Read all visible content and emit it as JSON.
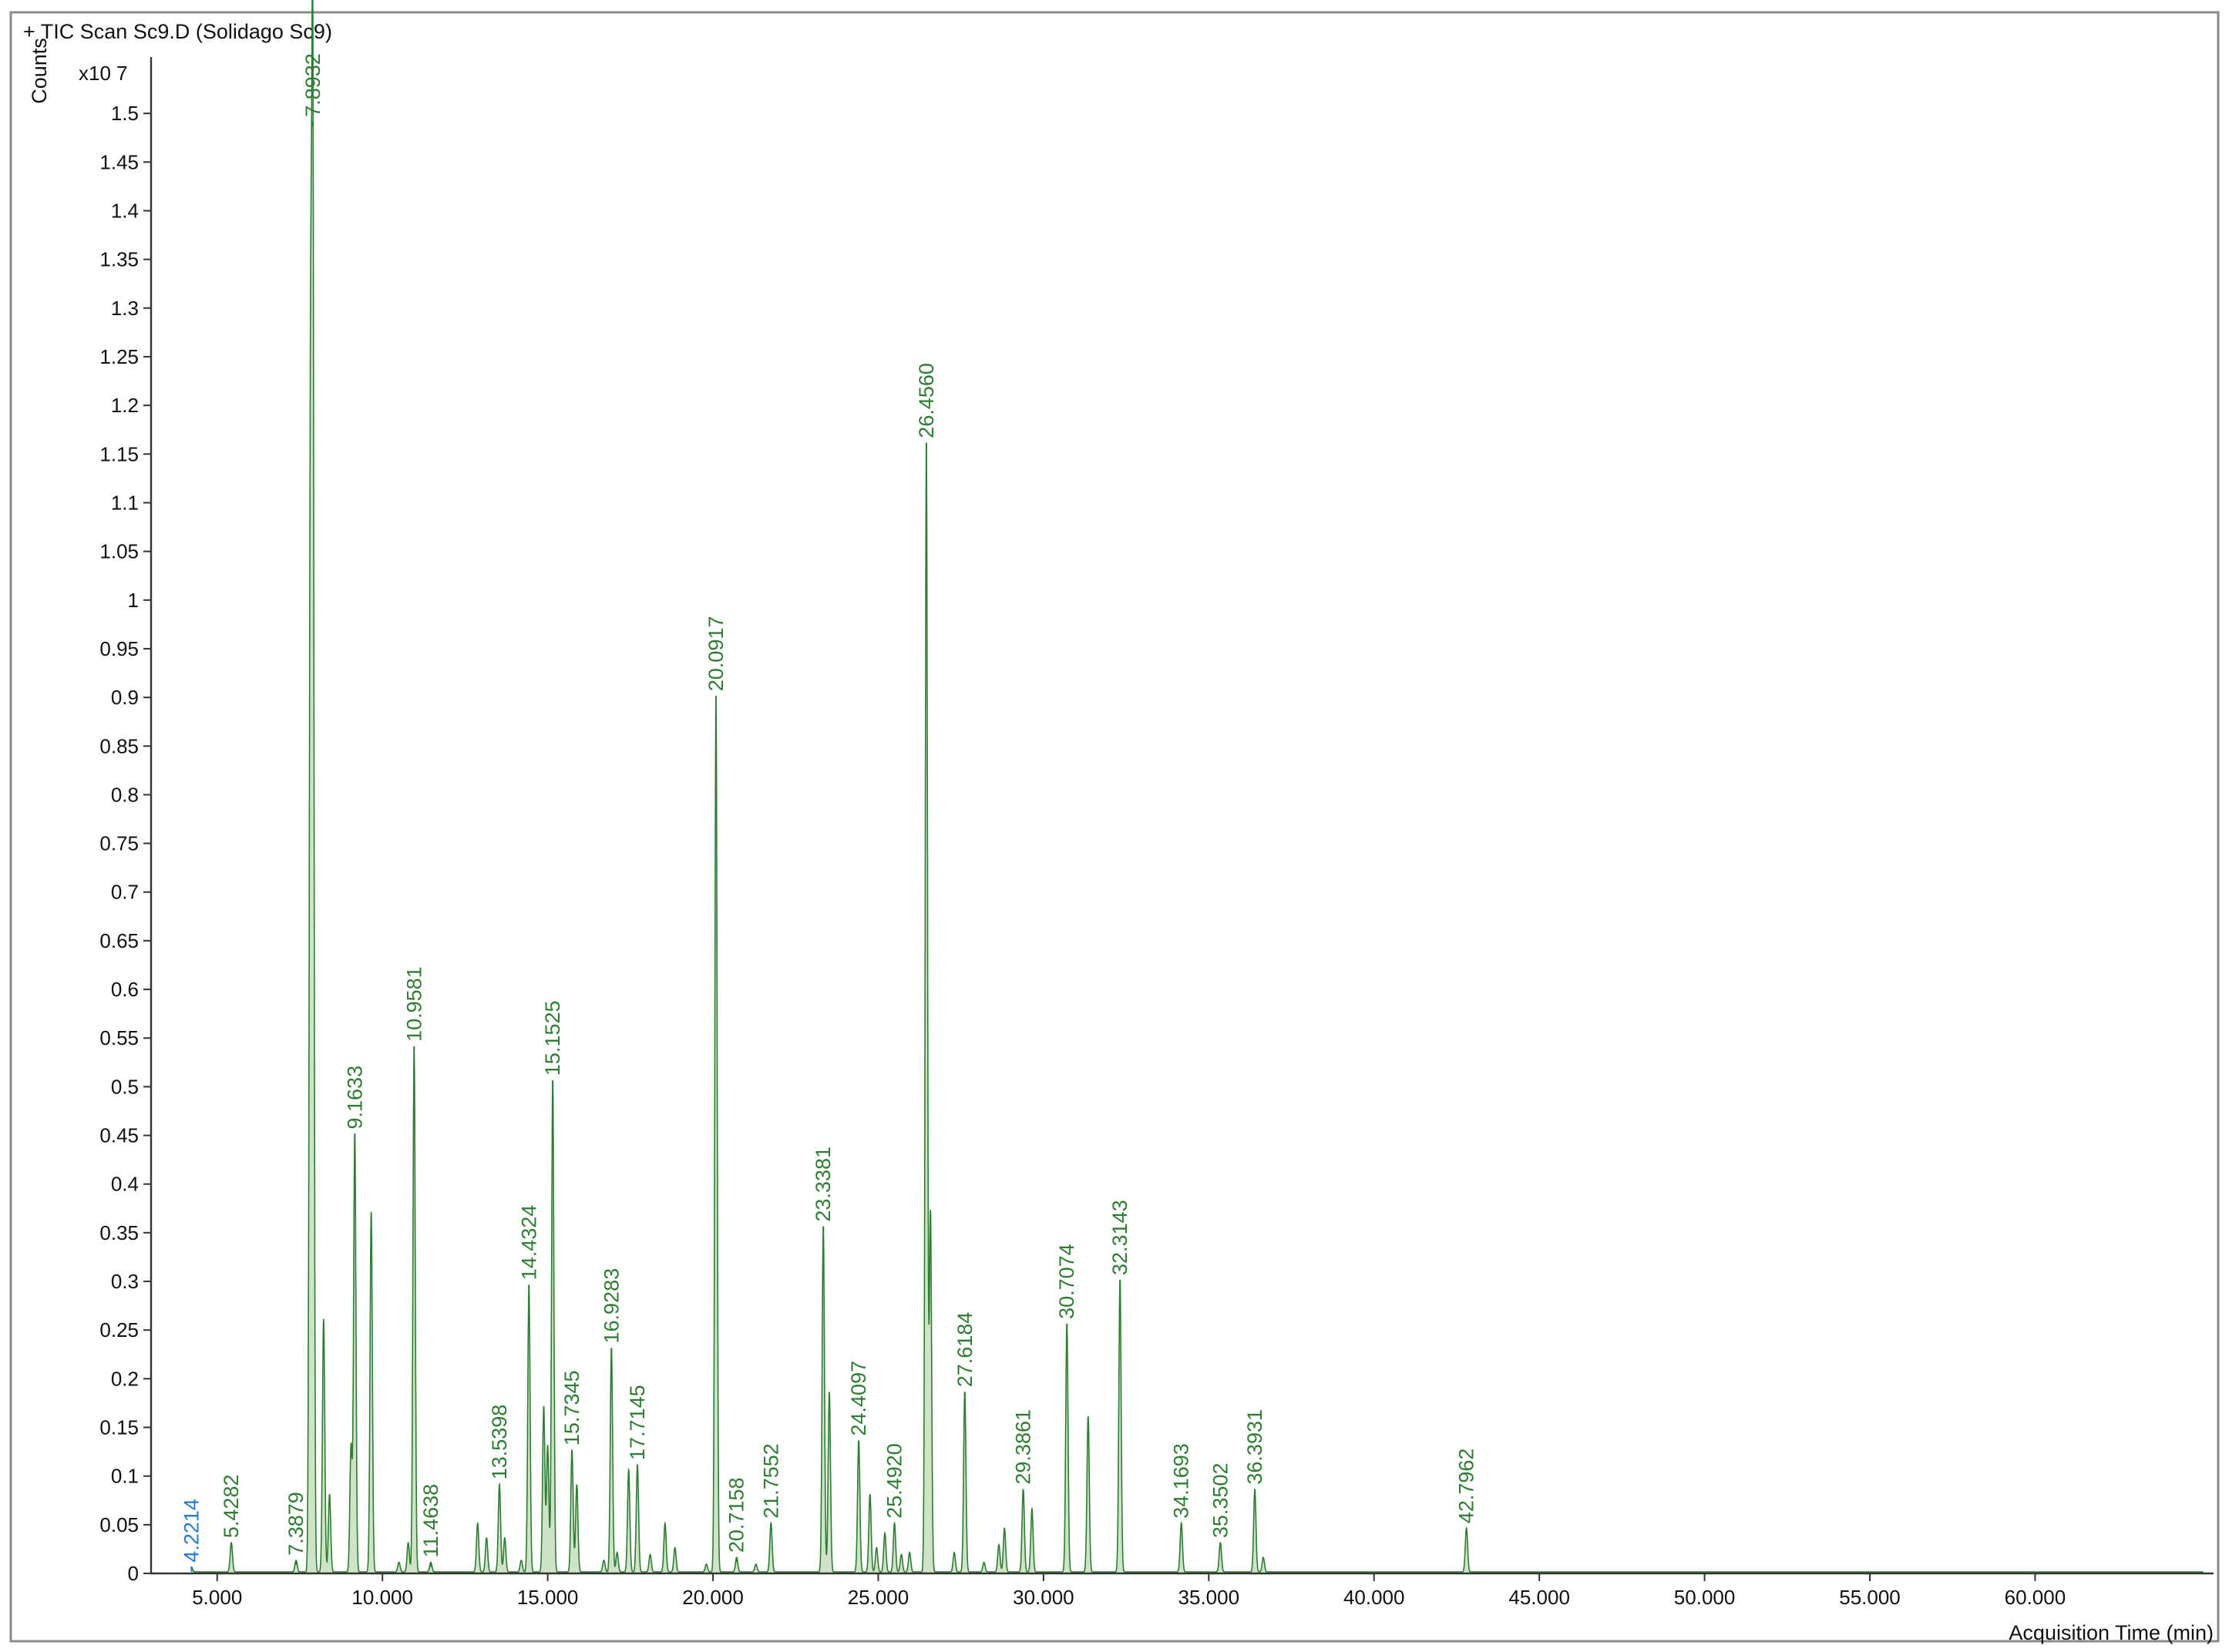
{
  "colors": {
    "trace": "#2e7d32",
    "trace_fill": "#cfe3c9",
    "highlight": "#1f7bd6",
    "axis": "#333333"
  },
  "chart_data": {
    "type": "line",
    "title": "+ TIC Scan Sc9.D (Solidago Sc9)",
    "ylabel": "Counts",
    "y_multiplier": "x10 7",
    "xlabel": "Acquisition Time (min)",
    "xlim": [
      3.0,
      65.4
    ],
    "ylim": [
      0,
      1.55
    ],
    "x_ticks": [
      5,
      10,
      15,
      20,
      25,
      30,
      35,
      40,
      45,
      50,
      55,
      60
    ],
    "x_tick_labels": [
      "5.000",
      "10.000",
      "15.000",
      "20.000",
      "25.000",
      "30.000",
      "35.000",
      "40.000",
      "45.000",
      "50.000",
      "55.000",
      "60.000"
    ],
    "y_ticks": [
      0,
      0.05,
      0.1,
      0.15,
      0.2,
      0.25,
      0.3,
      0.35,
      0.4,
      0.45,
      0.5,
      0.55,
      0.6,
      0.65,
      0.7,
      0.75,
      0.8,
      0.85,
      0.9,
      0.95,
      1,
      1.05,
      1.1,
      1.15,
      1.2,
      1.25,
      1.3,
      1.35,
      1.4,
      1.45,
      1.5
    ],
    "y_tick_labels": [
      "0",
      "0.05",
      "0.1",
      "0.15",
      "0.2",
      "0.25",
      "0.3",
      "0.35",
      "0.4",
      "0.45",
      "0.5",
      "0.55",
      "0.6",
      "0.65",
      "0.7",
      "0.75",
      "0.8",
      "0.85",
      "0.9",
      "0.95",
      "1",
      "1.05",
      "1.1",
      "1.15",
      "1.2",
      "1.25",
      "1.3",
      "1.35",
      "1.4",
      "1.45",
      "1.5"
    ],
    "labeled_peaks": [
      {
        "x": 4.2214,
        "y": 0.005,
        "label": "4.2214",
        "highlight": true
      },
      {
        "x": 5.4282,
        "y": 0.03,
        "label": "5.4282"
      },
      {
        "x": 7.3879,
        "y": 0.012,
        "label": "7.3879"
      },
      {
        "x": 7.8932,
        "y": 1.49,
        "label": "7.8932"
      },
      {
        "x": 9.1633,
        "y": 0.45,
        "label": "9.1633"
      },
      {
        "x": 10.9581,
        "y": 0.54,
        "label": "10.9581"
      },
      {
        "x": 11.4638,
        "y": 0.01,
        "label": "11.4638"
      },
      {
        "x": 13.5398,
        "y": 0.09,
        "label": "13.5398"
      },
      {
        "x": 14.4324,
        "y": 0.295,
        "label": "14.4324"
      },
      {
        "x": 15.1525,
        "y": 0.505,
        "label": "15.1525"
      },
      {
        "x": 15.7345,
        "y": 0.125,
        "label": "15.7345"
      },
      {
        "x": 16.9283,
        "y": 0.23,
        "label": "16.9283"
      },
      {
        "x": 17.7145,
        "y": 0.11,
        "label": "17.7145"
      },
      {
        "x": 20.0917,
        "y": 0.9,
        "label": "20.0917"
      },
      {
        "x": 20.7158,
        "y": 0.015,
        "label": "20.7158"
      },
      {
        "x": 21.7552,
        "y": 0.05,
        "label": "21.7552"
      },
      {
        "x": 23.3381,
        "y": 0.355,
        "label": "23.3381"
      },
      {
        "x": 24.4097,
        "y": 0.135,
        "label": "24.4097"
      },
      {
        "x": 25.492,
        "y": 0.05,
        "label": "25.4920"
      },
      {
        "x": 26.456,
        "y": 1.16,
        "label": "26.4560"
      },
      {
        "x": 27.6184,
        "y": 0.185,
        "label": "27.6184"
      },
      {
        "x": 29.3861,
        "y": 0.085,
        "label": "29.3861"
      },
      {
        "x": 30.7074,
        "y": 0.255,
        "label": "30.7074"
      },
      {
        "x": 32.3143,
        "y": 0.3,
        "label": "32.3143"
      },
      {
        "x": 34.1693,
        "y": 0.05,
        "label": "34.1693"
      },
      {
        "x": 35.3502,
        "y": 0.03,
        "label": "35.3502"
      },
      {
        "x": 36.3931,
        "y": 0.085,
        "label": "36.3931"
      },
      {
        "x": 42.7962,
        "y": 0.045,
        "label": "42.7962"
      }
    ],
    "unlabeled_peaks": [
      {
        "x": 7.82,
        "y": 1.1
      },
      {
        "x": 8.22,
        "y": 0.26
      },
      {
        "x": 8.4,
        "y": 0.08
      },
      {
        "x": 9.05,
        "y": 0.13
      },
      {
        "x": 9.66,
        "y": 0.37
      },
      {
        "x": 10.5,
        "y": 0.01
      },
      {
        "x": 10.78,
        "y": 0.03
      },
      {
        "x": 12.88,
        "y": 0.05
      },
      {
        "x": 13.15,
        "y": 0.035
      },
      {
        "x": 13.7,
        "y": 0.035
      },
      {
        "x": 14.2,
        "y": 0.012
      },
      {
        "x": 14.88,
        "y": 0.17
      },
      {
        "x": 15.0,
        "y": 0.13
      },
      {
        "x": 15.88,
        "y": 0.09
      },
      {
        "x": 16.7,
        "y": 0.012
      },
      {
        "x": 17.1,
        "y": 0.02
      },
      {
        "x": 17.45,
        "y": 0.105
      },
      {
        "x": 18.1,
        "y": 0.018
      },
      {
        "x": 18.55,
        "y": 0.05
      },
      {
        "x": 18.85,
        "y": 0.025
      },
      {
        "x": 19.8,
        "y": 0.008
      },
      {
        "x": 21.3,
        "y": 0.008
      },
      {
        "x": 23.52,
        "y": 0.185
      },
      {
        "x": 24.75,
        "y": 0.08
      },
      {
        "x": 24.95,
        "y": 0.025
      },
      {
        "x": 25.2,
        "y": 0.04
      },
      {
        "x": 25.7,
        "y": 0.018
      },
      {
        "x": 25.95,
        "y": 0.02
      },
      {
        "x": 26.58,
        "y": 0.37
      },
      {
        "x": 27.3,
        "y": 0.02
      },
      {
        "x": 28.2,
        "y": 0.01
      },
      {
        "x": 28.65,
        "y": 0.028
      },
      {
        "x": 28.82,
        "y": 0.045
      },
      {
        "x": 29.65,
        "y": 0.065
      },
      {
        "x": 31.35,
        "y": 0.16
      },
      {
        "x": 36.65,
        "y": 0.015
      }
    ]
  }
}
